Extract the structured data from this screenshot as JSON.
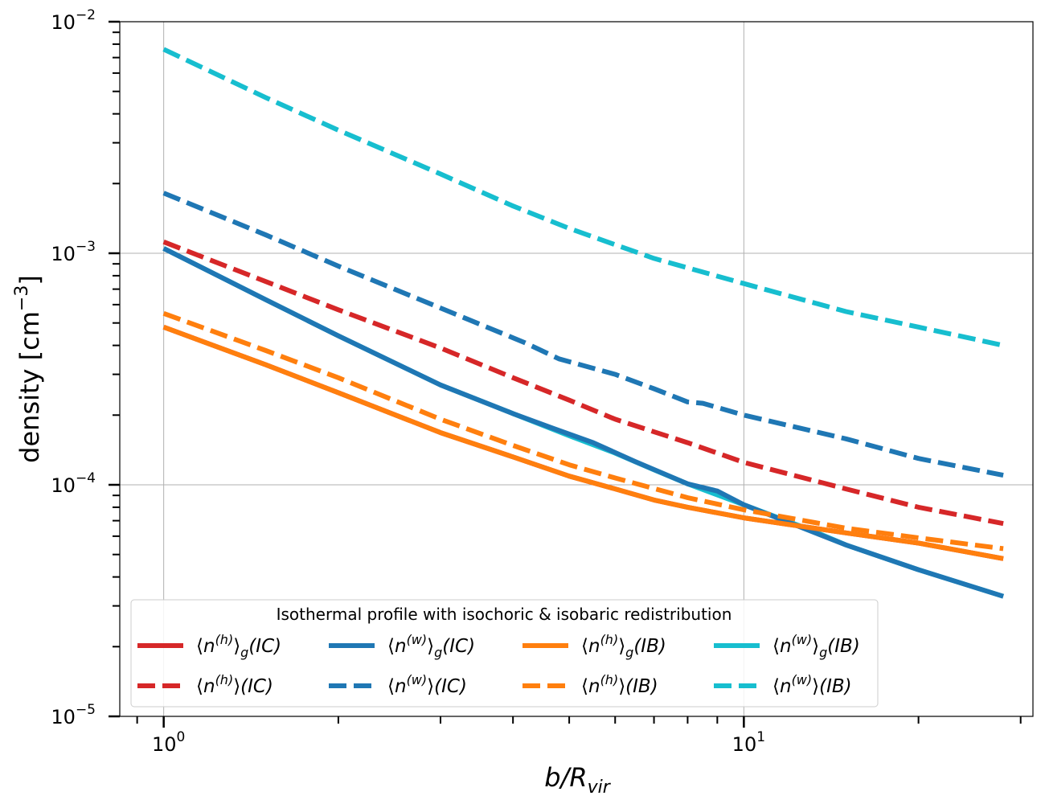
{
  "chart_data": {
    "type": "line",
    "xlabel": "b/R",
    "xlabel_sub": "vir",
    "ylabel": "density [cm",
    "ylabel_sup": "−3",
    "ylabel_close": "]",
    "xscale": "log",
    "yscale": "log",
    "xlim": [
      0.84,
      31.5
    ],
    "ylim": [
      1e-05,
      0.01
    ],
    "grid": true,
    "x_major_ticks": [
      {
        "value": 1,
        "base": "10",
        "exp": "0"
      },
      {
        "value": 10,
        "base": "10",
        "exp": "1"
      }
    ],
    "y_major_ticks": [
      {
        "value": 1e-05,
        "base": "10",
        "exp": "−5"
      },
      {
        "value": 0.0001,
        "base": "10",
        "exp": "−4"
      },
      {
        "value": 0.001,
        "base": "10",
        "exp": "−3"
      },
      {
        "value": 0.01,
        "base": "10",
        "exp": "−2"
      }
    ],
    "x_minor_ticks": [
      0.9,
      2,
      3,
      4,
      5,
      6,
      7,
      8,
      9,
      20,
      30
    ],
    "legend": {
      "title": "Isothermal profile with isochoric & isobaric redistribution",
      "placement": "lower-left",
      "columns": 4
    },
    "series": [
      {
        "base": "n",
        "sup": "(h)",
        "sub": "g",
        "tag": "(IC)",
        "color": "#d62728",
        "dash": "solid",
        "x": [
          1,
          1.5,
          2,
          3,
          4,
          5,
          6,
          7,
          8,
          10,
          15,
          20,
          28
        ],
        "y": [
          0.00048,
          0.00033,
          0.00025,
          0.000168,
          0.000132,
          0.000109,
          9.6e-05,
          8.6e-05,
          8e-05,
          7.2e-05,
          6.2e-05,
          5.6e-05,
          4.8e-05
        ]
      },
      {
        "base": "n",
        "sup": "(h)",
        "sub": "",
        "tag": "(IC)",
        "color": "#d62728",
        "dash": "dashed",
        "x": [
          1,
          2,
          3,
          4,
          5,
          6,
          8,
          10,
          15,
          20,
          28
        ],
        "y": [
          0.00112,
          0.00057,
          0.00039,
          0.00029,
          0.000232,
          0.000192,
          0.000152,
          0.000125,
          9.6e-05,
          8e-05,
          6.8e-05
        ]
      },
      {
        "base": "n",
        "sup": "(w)",
        "sub": "g",
        "tag": "(IC)",
        "color": "#1f77b4",
        "dash": "solid",
        "x": [
          1,
          1.5,
          2,
          3,
          4,
          4.7,
          5.5,
          6.5,
          8,
          9,
          10,
          15,
          20,
          28
        ],
        "y": [
          0.00105,
          0.00063,
          0.00044,
          0.00027,
          0.000203,
          0.000175,
          0.000152,
          0.000126,
          0.000101,
          9.4e-05,
          8.2e-05,
          5.5e-05,
          4.3e-05,
          3.3e-05
        ]
      },
      {
        "base": "n",
        "sup": "(w)",
        "sub": "",
        "tag": "(IC)",
        "color": "#1f77b4",
        "dash": "dashed",
        "x": [
          1,
          1.5,
          2,
          3,
          4.2,
          4.8,
          6,
          7,
          8,
          8.5,
          10,
          15,
          20,
          28
        ],
        "y": [
          0.00182,
          0.0012,
          0.00088,
          0.00058,
          0.00041,
          0.00035,
          0.0003,
          0.00026,
          0.000228,
          0.000225,
          0.0002,
          0.000158,
          0.00013,
          0.00011
        ]
      },
      {
        "base": "n",
        "sup": "(h)",
        "sub": "g",
        "tag": "(IB)",
        "color": "#ff7f0e",
        "dash": "solid",
        "x": [
          1,
          1.5,
          2,
          3,
          4,
          5,
          6,
          7,
          8,
          10,
          15,
          20,
          28
        ],
        "y": [
          0.00048,
          0.00033,
          0.00025,
          0.000168,
          0.000132,
          0.000109,
          9.6e-05,
          8.6e-05,
          8e-05,
          7.2e-05,
          6.2e-05,
          5.6e-05,
          4.8e-05
        ]
      },
      {
        "base": "n",
        "sup": "(h)",
        "sub": "",
        "tag": "(IB)",
        "color": "#ff7f0e",
        "dash": "dashed",
        "x": [
          1,
          1.5,
          2,
          3,
          4,
          5,
          6,
          8,
          10,
          15,
          20,
          28
        ],
        "y": [
          0.00055,
          0.00038,
          0.00029,
          0.000192,
          0.000148,
          0.000122,
          0.000107,
          8.8e-05,
          7.8e-05,
          6.5e-05,
          5.9e-05,
          5.3e-05
        ]
      },
      {
        "base": "n",
        "sup": "(w)",
        "sub": "g",
        "tag": "(IB)",
        "color": "#17becf",
        "dash": "solid",
        "x": [
          1,
          1.5,
          2,
          3,
          4,
          5,
          6,
          7,
          8,
          10,
          13,
          15,
          20,
          28
        ],
        "y": [
          0.00105,
          0.00063,
          0.00044,
          0.00027,
          0.000203,
          0.000163,
          0.000137,
          0.000116,
          0.000101,
          8.2e-05,
          6.4e-05,
          5.5e-05,
          4.3e-05,
          3.3e-05
        ]
      },
      {
        "base": "n",
        "sup": "(w)",
        "sub": "",
        "tag": "(IB)",
        "color": "#17becf",
        "dash": "dashed",
        "x": [
          1,
          1.5,
          2,
          3,
          4,
          5,
          7,
          10,
          15,
          20,
          28
        ],
        "y": [
          0.0076,
          0.0047,
          0.0034,
          0.0022,
          0.0016,
          0.00128,
          0.00095,
          0.00074,
          0.00056,
          0.00048,
          0.0004
        ]
      }
    ]
  }
}
